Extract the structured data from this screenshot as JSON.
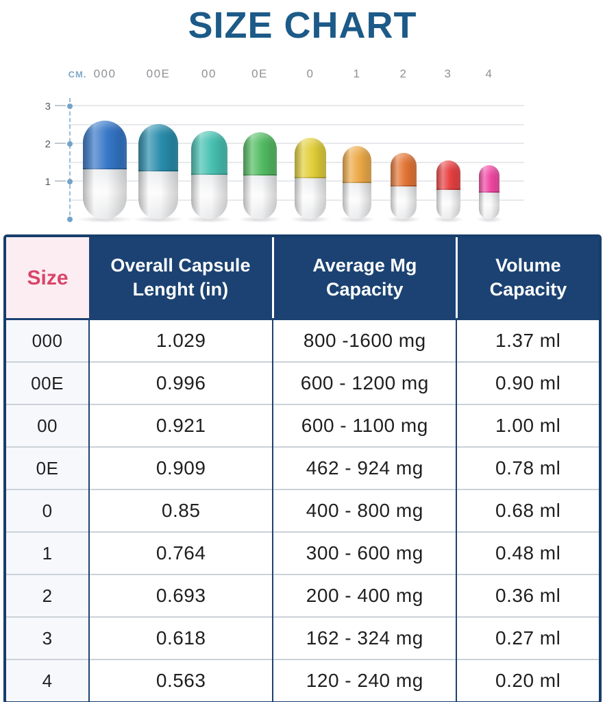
{
  "title": "SIZE CHART",
  "colors": {
    "title_blue": "#1C5A88",
    "header_navy": "#1B4272",
    "table_border_navy": "#173E6B",
    "size_header_text_pink": "#D94569",
    "size_header_bg_pink": "#FCEDF2"
  },
  "chart_data": {
    "type": "pictogram",
    "title": "SIZE CHART",
    "unit_label": "CM.",
    "y_ticks": [
      1,
      2,
      3
    ],
    "ylim": [
      0,
      3
    ],
    "grid": true,
    "grid_step_cm": 0.5,
    "categories": [
      "000",
      "00E",
      "00",
      "0E",
      "0",
      "1",
      "2",
      "3",
      "4"
    ],
    "capsule_length_in": [
      1.029,
      0.996,
      0.921,
      0.909,
      0.85,
      0.764,
      0.693,
      0.618,
      0.563
    ],
    "capsule_length_cm": [
      2.61,
      2.53,
      2.34,
      2.31,
      2.16,
      1.94,
      1.76,
      1.57,
      1.43
    ],
    "cap_colors": [
      "#2F72C5",
      "#2289A9",
      "#41BFAF",
      "#4CB95C",
      "#E0CD33",
      "#ECA742",
      "#E2702E",
      "#E73A3B",
      "#F0409F"
    ]
  },
  "table": {
    "headers": [
      "Size",
      "Overall Capsule Lenght (in)",
      "Average Mg Capacity",
      "Volume Capacity"
    ],
    "rows": [
      [
        "000",
        "1.029",
        "800 -1600 mg",
        "1.37 ml"
      ],
      [
        "00E",
        "0.996",
        "600 - 1200 mg",
        "0.90 ml"
      ],
      [
        "00",
        "0.921",
        "600 - 1100 mg",
        "1.00 ml"
      ],
      [
        "0E",
        "0.909",
        "462 - 924 mg",
        "0.78 ml"
      ],
      [
        "0",
        "0.85",
        "400 - 800 mg",
        "0.68 ml"
      ],
      [
        "1",
        "0.764",
        "300 - 600 mg",
        "0.48 ml"
      ],
      [
        "2",
        "0.693",
        "200 - 400 mg",
        "0.36 ml"
      ],
      [
        "3",
        "0.618",
        "162 - 324 mg",
        "0.27 ml"
      ],
      [
        "4",
        "0.563",
        "120 - 240 mg",
        "0.20 ml"
      ]
    ]
  }
}
